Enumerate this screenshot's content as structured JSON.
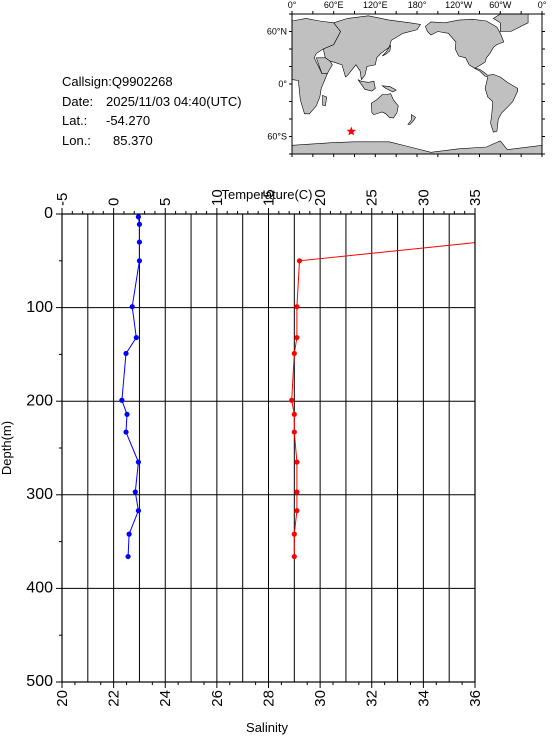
{
  "info": {
    "callsign_label": "Callsign:",
    "callsign": "Q9902268",
    "date_label": "Date:",
    "date": "2025/11/03 04:40(UTC)",
    "lat_label": "Lat.:",
    "lat": "-54.270",
    "lon_label": "Lon.:",
    "lon": "85.370"
  },
  "map": {
    "top_labels": [
      "0°",
      "60°E",
      "120°E",
      "180°",
      "120°W",
      "60°W",
      "0°"
    ],
    "left_labels": [
      "60°N",
      "0°",
      "60°S"
    ],
    "marker": {
      "lon": 85.37,
      "lat": -54.27
    },
    "marker_color": "#ff0000",
    "land_color": "#c0c0c0",
    "ocean_color": "#ffffff"
  },
  "chart_data": {
    "type": "line",
    "title": "",
    "top_axis_label": "Temperature(C)",
    "bottom_axis_label": "Salinity",
    "ylabel": "Depth(m)",
    "temperature_range": [
      -5,
      35
    ],
    "temperature_ticks": [
      "-5",
      "0",
      "5",
      "10",
      "15",
      "20",
      "25",
      "30",
      "35"
    ],
    "salinity_range": [
      20,
      36
    ],
    "salinity_ticks": [
      "20",
      "22",
      "24",
      "26",
      "28",
      "30",
      "32",
      "34",
      "36"
    ],
    "depth_range": [
      0,
      500
    ],
    "depth_ticks": [
      "0",
      "100",
      "200",
      "300",
      "400",
      "500"
    ],
    "grid": true,
    "series": [
      {
        "color": "#0000ff",
        "axis": "temperature",
        "points": [
          {
            "x": 2.4,
            "depth": 3
          },
          {
            "x": 2.5,
            "depth": 11
          },
          {
            "x": 2.5,
            "depth": 30
          },
          {
            "x": 2.5,
            "depth": 50
          },
          {
            "x": 1.8,
            "depth": 99
          },
          {
            "x": 2.2,
            "depth": 132
          },
          {
            "x": 1.2,
            "depth": 149
          },
          {
            "x": 0.8,
            "depth": 199
          },
          {
            "x": 1.3,
            "depth": 214
          },
          {
            "x": 1.2,
            "depth": 233
          },
          {
            "x": 2.4,
            "depth": 265
          },
          {
            "x": 2.1,
            "depth": 297
          },
          {
            "x": 2.4,
            "depth": 317
          },
          {
            "x": 1.5,
            "depth": 342
          },
          {
            "x": 1.4,
            "depth": 366
          }
        ]
      },
      {
        "color": "#ff0000",
        "axis": "salinity",
        "points": [
          {
            "x": 36.2,
            "depth": 30
          },
          {
            "x": 29.2,
            "depth": 50
          },
          {
            "x": 29.1,
            "depth": 99
          },
          {
            "x": 29.1,
            "depth": 132
          },
          {
            "x": 29.0,
            "depth": 149
          },
          {
            "x": 28.9,
            "depth": 199
          },
          {
            "x": 29.0,
            "depth": 214
          },
          {
            "x": 29.0,
            "depth": 233
          },
          {
            "x": 29.1,
            "depth": 265
          },
          {
            "x": 29.1,
            "depth": 297
          },
          {
            "x": 29.1,
            "depth": 317
          },
          {
            "x": 29.0,
            "depth": 342
          },
          {
            "x": 29.0,
            "depth": 366
          }
        ]
      }
    ]
  }
}
